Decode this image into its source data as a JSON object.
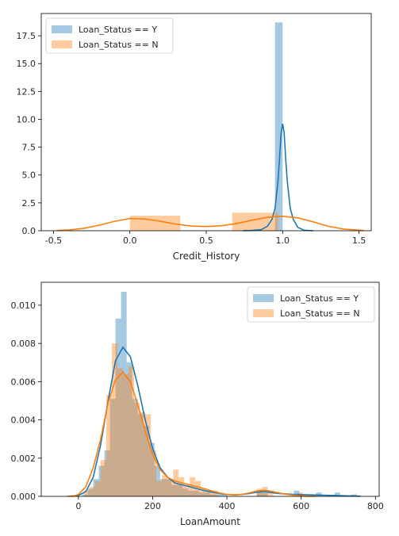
{
  "chart_data": [
    {
      "type": "histogram+kde",
      "xlabel": "Credit_History",
      "xlim": [
        -0.58,
        1.58
      ],
      "ylim": [
        0,
        19.5
      ],
      "x_ticks": [
        -0.5,
        0.0,
        0.5,
        1.0,
        1.5
      ],
      "x_tick_labels": [
        "-0.5",
        "0.0",
        "0.5",
        "1.0",
        "1.5"
      ],
      "y_ticks": [
        0,
        2.5,
        5,
        7.5,
        10,
        12.5,
        15,
        17.5
      ],
      "y_tick_labels": [
        "0.0",
        "2.5",
        "5.0",
        "7.5",
        "10.0",
        "12.5",
        "15.0",
        "17.5"
      ],
      "legend": {
        "position": "upper-left",
        "entries": [
          "Loan_Status == Y",
          "Loan_Status == N"
        ]
      },
      "series": [
        {
          "name": "Loan_Status == Y",
          "color": "#1f77b4",
          "bins": [
            [
              0.95,
              1.0,
              18.7
            ]
          ],
          "kde": {
            "x": [
              0.74,
              0.8,
              0.86,
              0.9,
              0.93,
              0.95,
              0.97,
              0.98,
              0.99,
              1.0,
              1.01,
              1.02,
              1.03,
              1.05,
              1.07,
              1.1,
              1.14,
              1.2
            ],
            "y": [
              0,
              0.03,
              0.1,
              0.4,
              1.0,
              2.0,
              4.5,
              6.5,
              8.8,
              9.6,
              8.8,
              6.5,
              4.5,
              2.0,
              1.0,
              0.3,
              0.05,
              0
            ]
          }
        },
        {
          "name": "Loan_Status == N",
          "color": "#ff7f0e",
          "bins": [
            [
              0.0,
              0.33,
              1.35
            ],
            [
              0.67,
              0.97,
              1.62
            ]
          ],
          "kde": {
            "x": [
              -0.48,
              -0.4,
              -0.3,
              -0.2,
              -0.1,
              0.0,
              0.1,
              0.2,
              0.3,
              0.4,
              0.5,
              0.6,
              0.7,
              0.8,
              0.9,
              1.0,
              1.1,
              1.2,
              1.3,
              1.4,
              1.53
            ],
            "y": [
              0.02,
              0.07,
              0.22,
              0.5,
              0.85,
              1.1,
              1.05,
              0.85,
              0.6,
              0.42,
              0.38,
              0.45,
              0.65,
              0.95,
              1.2,
              1.3,
              1.15,
              0.8,
              0.4,
              0.15,
              0.02
            ]
          }
        }
      ]
    },
    {
      "type": "histogram+kde",
      "xlabel": "LoanAmount",
      "xlim": [
        -100,
        810
      ],
      "ylim": [
        0,
        0.0112
      ],
      "x_ticks": [
        0,
        200,
        400,
        600,
        800
      ],
      "x_tick_labels": [
        "0",
        "200",
        "400",
        "600",
        "800"
      ],
      "y_ticks": [
        0,
        0.002,
        0.004,
        0.006,
        0.008,
        0.01
      ],
      "y_tick_labels": [
        "0.000",
        "0.002",
        "0.004",
        "0.006",
        "0.008",
        "0.010"
      ],
      "legend": {
        "position": "upper-right",
        "entries": [
          "Loan_Status == Y",
          "Loan_Status == N"
        ]
      },
      "series": [
        {
          "name": "Loan_Status == Y",
          "color": "#1f77b4",
          "bins": [
            [
              10,
              25,
              0.0001
            ],
            [
              25,
              40,
              0.0004
            ],
            [
              40,
              55,
              0.0009
            ],
            [
              55,
              70,
              0.0016
            ],
            [
              70,
              85,
              0.0024
            ],
            [
              85,
              100,
              0.0051
            ],
            [
              100,
              115,
              0.0093
            ],
            [
              115,
              130,
              0.0107
            ],
            [
              130,
              145,
              0.007
            ],
            [
              145,
              160,
              0.0051
            ],
            [
              160,
              175,
              0.0043
            ],
            [
              175,
              190,
              0.0037
            ],
            [
              190,
              205,
              0.0028
            ],
            [
              205,
              220,
              0.0016
            ],
            [
              220,
              235,
              0.0009
            ],
            [
              235,
              250,
              0.0009
            ],
            [
              250,
              265,
              0.0006
            ],
            [
              265,
              280,
              0.0006
            ],
            [
              280,
              295,
              0.0004
            ],
            [
              295,
              310,
              0.0003
            ],
            [
              310,
              325,
              0.0003
            ],
            [
              325,
              340,
              0.0002
            ],
            [
              340,
              355,
              0.0002
            ],
            [
              355,
              370,
              0.0001
            ],
            [
              370,
              385,
              0.0001
            ],
            [
              385,
              400,
              0.0001
            ],
            [
              480,
              495,
              0.0003
            ],
            [
              495,
              510,
              0.0002
            ],
            [
              580,
              595,
              0.0003
            ],
            [
              640,
              655,
              0.0002
            ],
            [
              690,
              705,
              0.0002
            ],
            [
              735,
              750,
              0.0001
            ]
          ],
          "kde": {
            "x": [
              -20,
              0,
              20,
              40,
              60,
              80,
              100,
              120,
              140,
              160,
              180,
              200,
              220,
              240,
              260,
              280,
              300,
              320,
              340,
              360,
              380,
              400,
              420,
              440,
              460,
              480,
              500,
              520,
              540,
              560,
              580,
              600,
              620,
              640,
              660,
              680,
              700,
              720,
              740,
              760
            ],
            "y": [
              0,
              5e-05,
              0.00025,
              0.001,
              0.0027,
              0.005,
              0.0071,
              0.0078,
              0.0073,
              0.0058,
              0.004,
              0.0025,
              0.0015,
              0.001,
              0.0007,
              0.0006,
              0.0005,
              0.0004,
              0.0003,
              0.00022,
              0.00015,
              0.0001,
              8e-05,
              0.0001,
              0.00015,
              0.00022,
              0.00025,
              0.0002,
              0.00015,
              0.00012,
              0.0001,
              9e-05,
              8e-05,
              7e-05,
              6e-05,
              5e-05,
              4e-05,
              3e-05,
              2e-05,
              1e-05
            ]
          }
        },
        {
          "name": "Loan_Status == N",
          "color": "#ff7f0e",
          "bins": [
            [
              15,
              30,
              0.0003
            ],
            [
              30,
              45,
              0.0005
            ],
            [
              45,
              60,
              0.0008
            ],
            [
              60,
              75,
              0.0019
            ],
            [
              75,
              90,
              0.0053
            ],
            [
              90,
              105,
              0.008
            ],
            [
              105,
              120,
              0.0067
            ],
            [
              120,
              135,
              0.0064
            ],
            [
              135,
              150,
              0.0068
            ],
            [
              150,
              165,
              0.0049
            ],
            [
              165,
              180,
              0.0044
            ],
            [
              180,
              195,
              0.0043
            ],
            [
              195,
              210,
              0.0024
            ],
            [
              210,
              225,
              0.0008
            ],
            [
              225,
              240,
              0.0011
            ],
            [
              240,
              255,
              0.0009
            ],
            [
              255,
              270,
              0.0014
            ],
            [
              270,
              285,
              0.001
            ],
            [
              285,
              300,
              0.0006
            ],
            [
              300,
              315,
              0.001
            ],
            [
              315,
              330,
              0.0008
            ],
            [
              330,
              345,
              0.0004
            ],
            [
              345,
              360,
              0.0003
            ],
            [
              360,
              375,
              0.0003
            ],
            [
              480,
              495,
              0.0004
            ],
            [
              495,
              510,
              0.0005
            ],
            [
              510,
              525,
              0.0003
            ],
            [
              590,
              605,
              0.0002
            ]
          ],
          "kde": {
            "x": [
              -30,
              -10,
              0,
              20,
              40,
              60,
              80,
              100,
              120,
              140,
              160,
              180,
              200,
              220,
              240,
              260,
              280,
              300,
              320,
              340,
              360,
              380,
              400,
              420,
              440,
              460,
              480,
              500,
              520,
              540,
              560,
              580,
              600,
              620,
              640
            ],
            "y": [
              0,
              3e-05,
              0.0001,
              0.0005,
              0.0015,
              0.003,
              0.0049,
              0.0061,
              0.0065,
              0.006,
              0.0048,
              0.0034,
              0.0022,
              0.0014,
              0.001,
              0.0008,
              0.0007,
              0.0006,
              0.0005,
              0.0004,
              0.00028,
              0.00018,
              0.0001,
              8e-05,
              0.0001,
              0.00018,
              0.00028,
              0.00032,
              0.00027,
              0.00018,
              0.0001,
              6e-05,
              3e-05,
              1e-05,
              0
            ]
          }
        }
      ]
    }
  ]
}
